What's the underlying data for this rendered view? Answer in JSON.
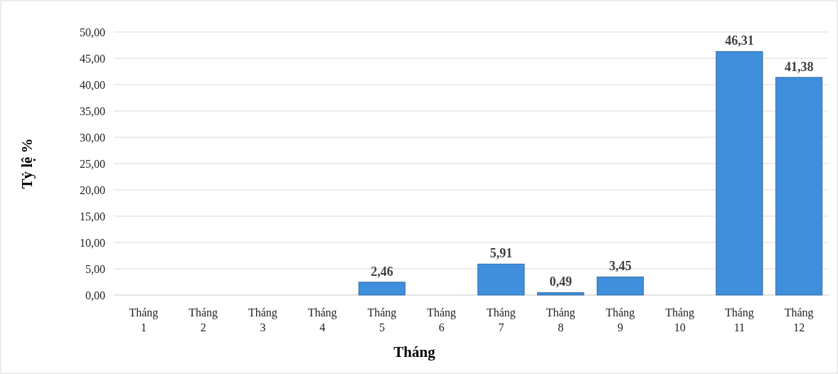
{
  "chart_data": {
    "type": "bar",
    "xlabel": "Tháng",
    "ylabel": "Tỷ lệ %",
    "categories": [
      "Tháng 1",
      "Tháng 2",
      "Tháng 3",
      "Tháng 4",
      "Tháng 5",
      "Tháng 6",
      "Tháng 7",
      "Tháng 8",
      "Tháng 9",
      "Tháng 10",
      "Tháng 11",
      "Tháng 12"
    ],
    "values": [
      0,
      0,
      0,
      0,
      2.46,
      0,
      5.91,
      0.49,
      3.45,
      0,
      46.31,
      41.38
    ],
    "value_labels": [
      null,
      null,
      null,
      null,
      "2,46",
      null,
      "5,91",
      "0,49",
      "3,45",
      null,
      "46,31",
      "41,38"
    ],
    "color": "#3f8fdc",
    "ylim": [
      0,
      50
    ],
    "yticks": [
      {
        "value": 0,
        "label": "0,00"
      },
      {
        "value": 5,
        "label": "5,00"
      },
      {
        "value": 10,
        "label": "10,00"
      },
      {
        "value": 15,
        "label": "15,00"
      },
      {
        "value": 20,
        "label": "20,00"
      },
      {
        "value": 25,
        "label": "25,00"
      },
      {
        "value": 30,
        "label": "30,00"
      },
      {
        "value": 35,
        "label": "35,00"
      },
      {
        "value": 40,
        "label": "40,00"
      },
      {
        "value": 45,
        "label": "45,00"
      },
      {
        "value": 50,
        "label": "50,00"
      }
    ],
    "grid": "y"
  }
}
